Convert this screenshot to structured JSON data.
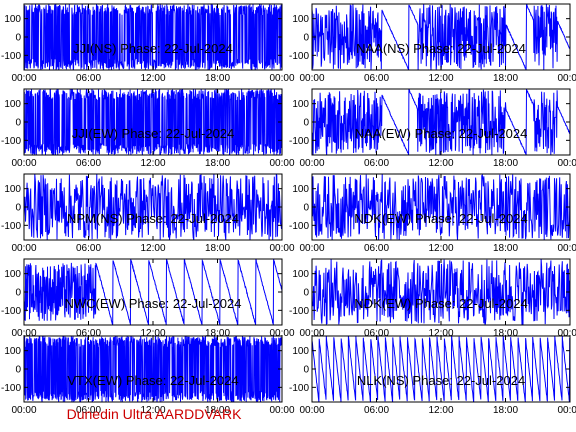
{
  "footer": {
    "text": "Dunedin Ultra AARDDVARK",
    "color": "#cc0000"
  },
  "colors": {
    "trace": "#0000ff",
    "axis": "#000000",
    "background": "#ffffff"
  },
  "chart_data": [
    {
      "type": "line",
      "title": "JJI(NS) Phase: 22-Jul-2024",
      "xlabel": "",
      "ylabel": "",
      "xticks": [
        "00:00",
        "06:00",
        "12:00",
        "18:00",
        "00:00"
      ],
      "yticks": [
        100,
        0,
        -100
      ],
      "xlim": [
        0,
        24
      ],
      "ylim": [
        -180,
        180
      ],
      "grid": false,
      "pattern": "saturated"
    },
    {
      "type": "line",
      "title": "NAA(NS) Phase: 22-Jul-2024",
      "xlabel": "",
      "ylabel": "",
      "xticks": [
        "00:00",
        "06:00",
        "12:00",
        "18:00",
        "00:00"
      ],
      "yticks": [
        100,
        0,
        -100
      ],
      "xlim": [
        0,
        24
      ],
      "ylim": [
        -180,
        180
      ],
      "grid": false,
      "pattern": "naa"
    },
    {
      "type": "line",
      "title": "JJI(EW) Phase: 22-Jul-2024",
      "xlabel": "",
      "ylabel": "",
      "xticks": [
        "00:00",
        "06:00",
        "12:00",
        "18:00",
        "00:00"
      ],
      "yticks": [
        100,
        0,
        -100
      ],
      "xlim": [
        0,
        24
      ],
      "ylim": [
        -180,
        180
      ],
      "grid": false,
      "pattern": "saturated"
    },
    {
      "type": "line",
      "title": "NAA(EW) Phase: 22-Jul-2024",
      "xlabel": "",
      "ylabel": "",
      "xticks": [
        "00:00",
        "06:00",
        "12:00",
        "18:00",
        "00:00"
      ],
      "yticks": [
        100,
        0,
        -100
      ],
      "xlim": [
        0,
        24
      ],
      "ylim": [
        -180,
        180
      ],
      "grid": false,
      "pattern": "naa"
    },
    {
      "type": "line",
      "title": "NPM(NS) Phase: 22-Jul-2024",
      "xlabel": "",
      "ylabel": "",
      "xticks": [
        "00:00",
        "06:00",
        "12:00",
        "18:00",
        "00:00"
      ],
      "yticks": [
        100,
        0,
        -100
      ],
      "xlim": [
        0,
        24
      ],
      "ylim": [
        -180,
        180
      ],
      "grid": false,
      "pattern": "dense"
    },
    {
      "type": "line",
      "title": "NDK(EW) Phase: 22-Jul-2024",
      "xlabel": "",
      "ylabel": "",
      "xticks": [
        "00:00",
        "06:00",
        "12:00",
        "18:00",
        "00:00"
      ],
      "yticks": [
        100,
        0,
        -100
      ],
      "xlim": [
        0,
        24
      ],
      "ylim": [
        -180,
        180
      ],
      "grid": false,
      "pattern": "dense"
    },
    {
      "type": "line",
      "title": "NWC(EW) Phase: 22-Jul-2024",
      "xlabel": "",
      "ylabel": "",
      "xticks": [
        "00:00",
        "06:00",
        "12:00",
        "18:00",
        "00:00"
      ],
      "yticks": [
        100,
        0,
        -100
      ],
      "xlim": [
        0,
        24
      ],
      "ylim": [
        -180,
        180
      ],
      "grid": false,
      "pattern": "ramps"
    },
    {
      "type": "line",
      "title": "NDK(EW) Phase: 22-Jul-2024",
      "xlabel": "",
      "ylabel": "",
      "xticks": [
        "00:00",
        "06:00",
        "12:00",
        "18:00",
        "00:00"
      ],
      "yticks": [
        100,
        0,
        -100
      ],
      "xlim": [
        0,
        24
      ],
      "ylim": [
        -180,
        180
      ],
      "grid": false,
      "pattern": "dense"
    },
    {
      "type": "line",
      "title": "VTX(EW) Phase: 22-Jul-2024",
      "xlabel": "",
      "ylabel": "",
      "xticks": [
        "00:00",
        "06:00",
        "12:00",
        "18:00",
        "00:00"
      ],
      "yticks": [
        100,
        0,
        -100
      ],
      "xlim": [
        0,
        24
      ],
      "ylim": [
        -180,
        180
      ],
      "grid": false,
      "pattern": "saturated"
    },
    {
      "type": "line",
      "title": "NLK(NS) Phase: 22-Jul-2024",
      "xlabel": "",
      "ylabel": "",
      "xticks": [
        "00:00",
        "06:00",
        "12:00",
        "18:00",
        "00:00"
      ],
      "yticks": [
        100,
        0,
        -100
      ],
      "xlim": [
        0,
        24
      ],
      "ylim": [
        -180,
        180
      ],
      "grid": false,
      "pattern": "sawtooth"
    }
  ]
}
